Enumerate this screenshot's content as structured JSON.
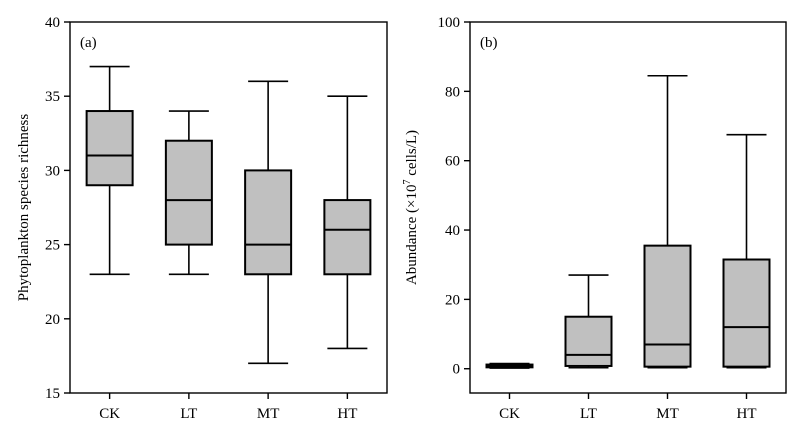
{
  "chart_data": [
    {
      "type": "boxplot",
      "panel_label": "(a)",
      "categories": [
        "CK",
        "LT",
        "MT",
        "HT"
      ],
      "ylabel": "Phytoplankton species richness",
      "ylabel_parts": {
        "pre": "",
        "sup": "",
        "post": ""
      },
      "ylim": [
        15,
        40
      ],
      "yticks": [
        15,
        20,
        25,
        30,
        35,
        40
      ],
      "boxes": [
        {
          "min": 23,
          "q1": 29,
          "median": 31,
          "q3": 34,
          "max": 37
        },
        {
          "min": 23,
          "q1": 25,
          "median": 28,
          "q3": 32,
          "max": 34
        },
        {
          "min": 17,
          "q1": 23,
          "median": 25,
          "q3": 30,
          "max": 36
        },
        {
          "min": 18,
          "q1": 23,
          "median": 26,
          "q3": 28,
          "max": 35
        }
      ]
    },
    {
      "type": "boxplot",
      "panel_label": "(b)",
      "categories": [
        "CK",
        "LT",
        "MT",
        "HT"
      ],
      "ylabel": "Abundance (×10⁷ cells/L)",
      "ylabel_parts": {
        "pre": "Abundance (×10",
        "sup": "7",
        "post": " cells/L)"
      },
      "ylim": [
        -7,
        100
      ],
      "yticks": [
        0,
        20,
        40,
        60,
        80,
        100
      ],
      "boxes": [
        {
          "min": 0.2,
          "q1": 0.4,
          "median": 0.8,
          "q3": 1.2,
          "max": 1.5
        },
        {
          "min": 0.3,
          "q1": 0.8,
          "median": 4,
          "q3": 15,
          "max": 27
        },
        {
          "min": 0.3,
          "q1": 0.6,
          "median": 7,
          "q3": 35.5,
          "max": 84.5
        },
        {
          "min": 0.3,
          "q1": 0.6,
          "median": 12,
          "q3": 31.5,
          "max": 67.5
        }
      ]
    }
  ]
}
